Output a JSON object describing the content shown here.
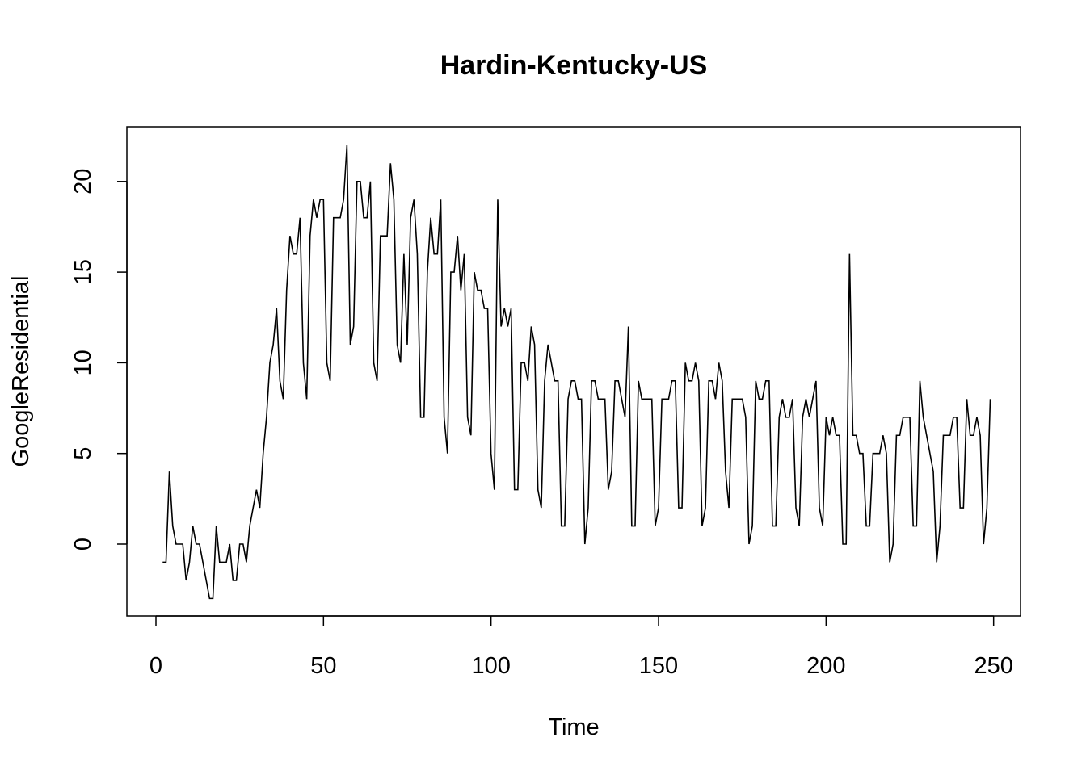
{
  "chart_data": {
    "type": "line",
    "title": "Hardin-Kentucky-US",
    "xlabel": "Time",
    "ylabel": "GoogleResidential",
    "xlim": [
      0,
      250
    ],
    "ylim": [
      -3,
      22
    ],
    "x_ticks": [
      "0",
      "50",
      "100",
      "150",
      "200",
      "250"
    ],
    "y_ticks": [
      "0",
      "5",
      "10",
      "15",
      "20"
    ],
    "grid": false,
    "line_color": "#000000",
    "series": [
      {
        "x_start": 2,
        "values": [
          -1,
          -1,
          4,
          1,
          0,
          0,
          0,
          -2,
          -1,
          1,
          0,
          0,
          -1,
          -2,
          -3,
          -3,
          1,
          -1,
          -1,
          -1,
          0,
          -2,
          -2,
          0,
          0,
          -1,
          1,
          2,
          3,
          2,
          5,
          7,
          10,
          11,
          13,
          9,
          8,
          14,
          17,
          16,
          16,
          18,
          10,
          8,
          17,
          19,
          18,
          19,
          19,
          10,
          9,
          18,
          18,
          18,
          19,
          22,
          11,
          12,
          20,
          20,
          18,
          18,
          20,
          10,
          9,
          17,
          17,
          17,
          21,
          19,
          11,
          10,
          16,
          11,
          18,
          19,
          16,
          7,
          7,
          15,
          18,
          16,
          16,
          19,
          7,
          5,
          15,
          15,
          17,
          14,
          16,
          7,
          6,
          15,
          14,
          14,
          13,
          13,
          5,
          3,
          19,
          12,
          13,
          12,
          13,
          3,
          3,
          10,
          10,
          9,
          12,
          11,
          3,
          2,
          9,
          11,
          10,
          9,
          9,
          1,
          1,
          8,
          9,
          9,
          8,
          8,
          0,
          2,
          9,
          9,
          8,
          8,
          8,
          3,
          4,
          9,
          9,
          8,
          7,
          12,
          1,
          1,
          9,
          8,
          8,
          8,
          8,
          1,
          2,
          8,
          8,
          8,
          9,
          9,
          2,
          2,
          10,
          9,
          9,
          10,
          9,
          1,
          2,
          9,
          9,
          8,
          10,
          9,
          4,
          2,
          8,
          8,
          8,
          8,
          7,
          0,
          1,
          9,
          8,
          8,
          9,
          9,
          1,
          1,
          7,
          8,
          7,
          7,
          8,
          2,
          1,
          7,
          8,
          7,
          8,
          9,
          2,
          1,
          7,
          6,
          7,
          6,
          6,
          0,
          0,
          16,
          6,
          6,
          5,
          5,
          1,
          1,
          5,
          5,
          5,
          6,
          5,
          -1,
          0,
          6,
          6,
          7,
          7,
          7,
          1,
          1,
          9,
          7,
          6,
          5,
          4,
          -1,
          1,
          6,
          6,
          6,
          7,
          7,
          2,
          2,
          8,
          6,
          6,
          7,
          6,
          0,
          2,
          8
        ]
      }
    ]
  }
}
